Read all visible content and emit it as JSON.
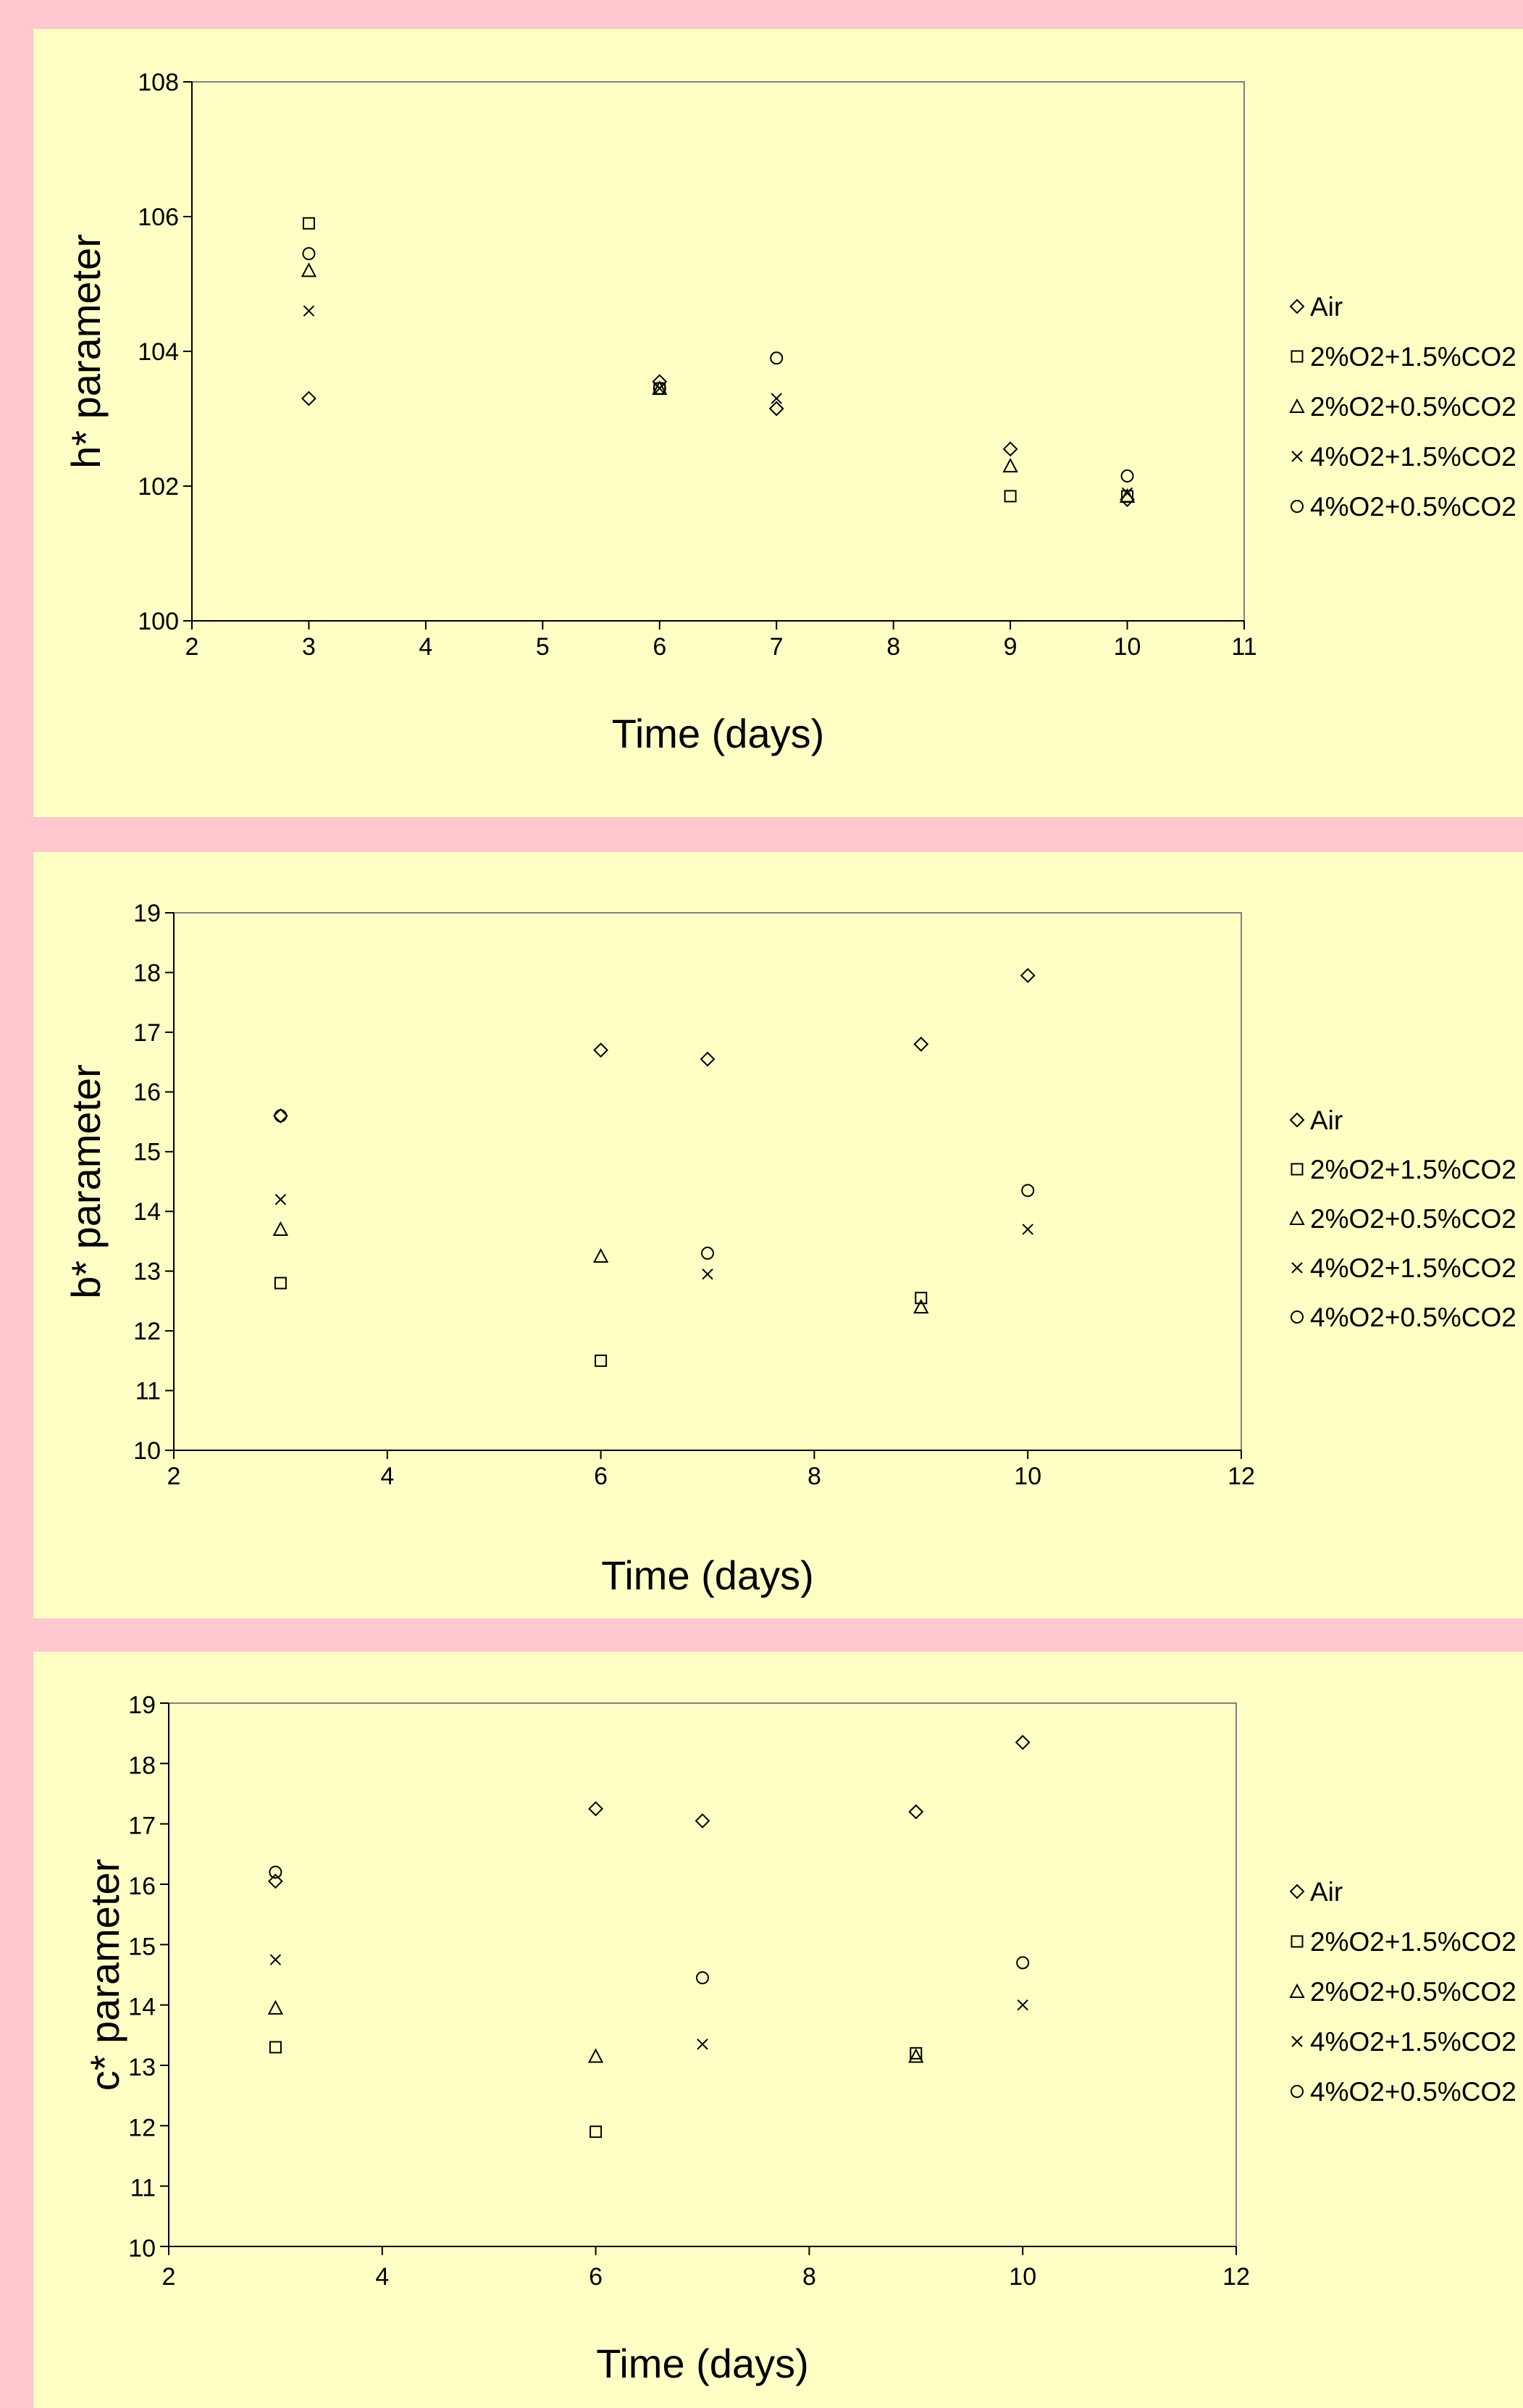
{
  "chart_data": [
    {
      "type": "scatter",
      "title": "",
      "xlabel": "Time (days)",
      "ylabel": "h* parameter",
      "xlim": [
        2,
        11
      ],
      "ylim": [
        100,
        108
      ],
      "xticks": [
        "2",
        "3",
        "4",
        "5",
        "6",
        "7",
        "8",
        "9",
        "10",
        "11"
      ],
      "yticks": [
        "100",
        "102",
        "104",
        "106",
        "108"
      ],
      "grid": false,
      "legend": "right",
      "series": [
        {
          "name": "Air",
          "marker": "diamond",
          "points": [
            [
              3,
              103.3
            ],
            [
              6,
              103.55
            ],
            [
              7,
              103.15
            ],
            [
              9,
              102.55
            ],
            [
              10,
              101.8
            ]
          ]
        },
        {
          "name": "2%O2+1.5%CO2",
          "marker": "square",
          "points": [
            [
              3,
              105.9
            ],
            [
              6,
              103.45
            ],
            [
              9,
              101.85
            ],
            [
              10,
              101.85
            ]
          ]
        },
        {
          "name": "2%O2+0.5%CO2",
          "marker": "triangle",
          "points": [
            [
              3,
              105.2
            ],
            [
              6,
              103.45
            ],
            [
              9,
              102.3
            ],
            [
              10,
              101.85
            ]
          ]
        },
        {
          "name": "4%O2+1.5%CO2",
          "marker": "x",
          "points": [
            [
              3,
              104.6
            ],
            [
              6,
              103.45
            ],
            [
              7,
              103.3
            ],
            [
              10,
              101.9
            ]
          ]
        },
        {
          "name": "4%O2+0.5%CO2",
          "marker": "circle",
          "points": [
            [
              3,
              105.45
            ],
            [
              6,
              103.45
            ],
            [
              7,
              103.9
            ],
            [
              10,
              102.15
            ]
          ]
        }
      ]
    },
    {
      "type": "scatter",
      "title": "",
      "xlabel": "Time (days)",
      "ylabel": "b* parameter",
      "xlim": [
        2,
        12
      ],
      "ylim": [
        10,
        19
      ],
      "xticks": [
        "2",
        "4",
        "6",
        "8",
        "10",
        "12"
      ],
      "yticks": [
        "10",
        "11",
        "12",
        "13",
        "14",
        "15",
        "16",
        "17",
        "18",
        "19"
      ],
      "grid": false,
      "legend": "right",
      "series": [
        {
          "name": "Air",
          "marker": "diamond",
          "points": [
            [
              3,
              15.6
            ],
            [
              6,
              16.7
            ],
            [
              7,
              16.55
            ],
            [
              9,
              16.8
            ],
            [
              10,
              17.95
            ]
          ]
        },
        {
          "name": "2%O2+1.5%CO2",
          "marker": "square",
          "points": [
            [
              3,
              12.8
            ],
            [
              6,
              11.5
            ],
            [
              9,
              12.55
            ]
          ]
        },
        {
          "name": "2%O2+0.5%CO2",
          "marker": "triangle",
          "points": [
            [
              3,
              13.7
            ],
            [
              6,
              13.25
            ],
            [
              9,
              12.4
            ]
          ]
        },
        {
          "name": "4%O2+1.5%CO2",
          "marker": "x",
          "points": [
            [
              3,
              14.2
            ],
            [
              7,
              12.95
            ],
            [
              10,
              13.7
            ]
          ]
        },
        {
          "name": "4%O2+0.5%CO2",
          "marker": "circle",
          "points": [
            [
              3,
              15.6
            ],
            [
              7,
              13.3
            ],
            [
              10,
              14.35
            ]
          ]
        }
      ]
    },
    {
      "type": "scatter",
      "title": "",
      "xlabel": "Time (days)",
      "ylabel": "c* parameter",
      "xlim": [
        2,
        12
      ],
      "ylim": [
        10,
        19
      ],
      "xticks": [
        "2",
        "4",
        "6",
        "8",
        "10",
        "12"
      ],
      "yticks": [
        "10",
        "11",
        "12",
        "13",
        "14",
        "15",
        "16",
        "17",
        "18",
        "19"
      ],
      "grid": false,
      "legend": "right",
      "series": [
        {
          "name": "Air",
          "marker": "diamond",
          "points": [
            [
              3,
              16.05
            ],
            [
              6,
              17.25
            ],
            [
              7,
              17.05
            ],
            [
              9,
              17.2
            ],
            [
              10,
              18.35
            ]
          ]
        },
        {
          "name": "2%O2+1.5%CO2",
          "marker": "square",
          "points": [
            [
              3,
              13.3
            ],
            [
              6,
              11.9
            ],
            [
              9,
              13.2
            ]
          ]
        },
        {
          "name": "2%O2+0.5%CO2",
          "marker": "triangle",
          "points": [
            [
              3,
              13.95
            ],
            [
              6,
              13.15
            ],
            [
              9,
              13.15
            ]
          ]
        },
        {
          "name": "4%O2+1.5%CO2",
          "marker": "x",
          "points": [
            [
              3,
              14.75
            ],
            [
              7,
              13.35
            ],
            [
              10,
              14.0
            ]
          ]
        },
        {
          "name": "4%O2+0.5%CO2",
          "marker": "circle",
          "points": [
            [
              3,
              16.2
            ],
            [
              7,
              14.45
            ],
            [
              10,
              14.7
            ]
          ]
        }
      ]
    }
  ]
}
